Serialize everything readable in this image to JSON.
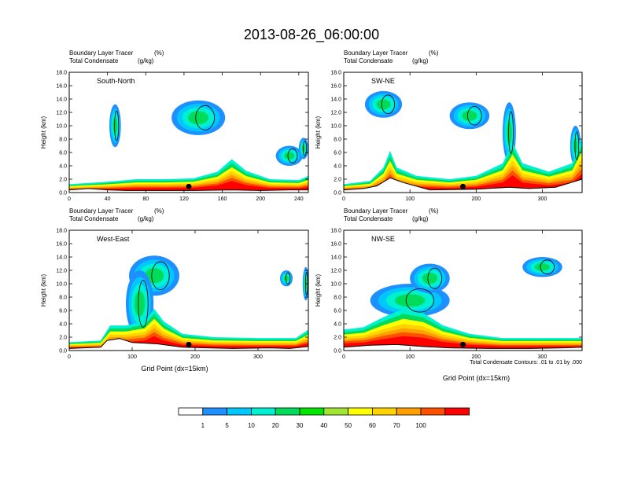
{
  "colors": {
    "scale": [
      "#ffffff",
      "#1e90ff",
      "#00c8ff",
      "#00f0d2",
      "#00dc5a",
      "#00e600",
      "#a0e632",
      "#ffff00",
      "#ffd200",
      "#ffa000",
      "#ff5000",
      "#ff0000"
    ]
  },
  "chart_data": [
    {
      "type": "heatmap",
      "panel": "South-North",
      "title": "2013-08-26_06:00:00",
      "subtitle_left_1": "Boundary Layer Tracer",
      "subtitle_unit_1": "(%)",
      "subtitle_left_2": "Total Condensate",
      "subtitle_unit_2": "(g/kg)",
      "ylabel": "Height (km)",
      "xlabel": "",
      "xlim": [
        0,
        250
      ],
      "ylim": [
        0,
        18
      ],
      "xticks": [
        0,
        40,
        80,
        120,
        160,
        200,
        240
      ],
      "yticks": [
        "0.0",
        "2.0",
        "4.0",
        "6.0",
        "8.0",
        "10.0",
        "12.0",
        "14.0",
        "16.0",
        "18.0"
      ],
      "marker_x": 125,
      "terrain": [
        [
          0,
          0.4
        ],
        [
          20,
          0.6
        ],
        [
          40,
          0.4
        ],
        [
          60,
          0.3
        ],
        [
          90,
          0.3
        ],
        [
          130,
          0.3
        ],
        [
          170,
          0.4
        ],
        [
          200,
          0.3
        ],
        [
          230,
          0.4
        ],
        [
          250,
          0.4
        ]
      ],
      "red_top": [
        [
          0,
          1.0
        ],
        [
          40,
          1.3
        ],
        [
          70,
          1.6
        ],
        [
          100,
          1.6
        ],
        [
          130,
          1.7
        ],
        [
          155,
          2.5
        ],
        [
          170,
          4.0
        ],
        [
          185,
          2.6
        ],
        [
          210,
          1.6
        ],
        [
          240,
          1.5
        ],
        [
          250,
          2.0
        ]
      ],
      "blobs": [
        {
          "x": 135,
          "y": 11.2,
          "rx": 28,
          "ry": 2.6
        },
        {
          "x": 48,
          "y": 10.0,
          "rx": 6,
          "ry": 3.2
        },
        {
          "x": 230,
          "y": 5.5,
          "rx": 14,
          "ry": 1.5
        },
        {
          "x": 245,
          "y": 6.6,
          "rx": 5,
          "ry": 1.6
        }
      ]
    },
    {
      "type": "heatmap",
      "panel": "SW-NE",
      "subtitle_left_1": "Boundary Layer Tracer",
      "subtitle_unit_1": "(%)",
      "subtitle_left_2": "Total Condensate",
      "subtitle_unit_2": "(g/kg)",
      "ylabel": "Height (km)",
      "xlabel": "",
      "xlim": [
        0,
        360
      ],
      "ylim": [
        0,
        18
      ],
      "xticks": [
        0,
        100,
        200,
        300
      ],
      "yticks": [
        "0.0",
        "2.0",
        "4.0",
        "6.0",
        "8.0",
        "10.0",
        "12.0",
        "14.0",
        "16.0",
        "18.0"
      ],
      "marker_x": 180,
      "terrain": [
        [
          0,
          0.4
        ],
        [
          30,
          0.6
        ],
        [
          50,
          1.0
        ],
        [
          70,
          2.2
        ],
        [
          90,
          1.5
        ],
        [
          130,
          0.4
        ],
        [
          200,
          0.5
        ],
        [
          250,
          0.8
        ],
        [
          280,
          0.6
        ],
        [
          320,
          0.8
        ],
        [
          360,
          2.0
        ]
      ],
      "red_top": [
        [
          0,
          1.0
        ],
        [
          40,
          1.4
        ],
        [
          60,
          3.0
        ],
        [
          70,
          5.0
        ],
        [
          80,
          3.0
        ],
        [
          110,
          2.0
        ],
        [
          160,
          1.6
        ],
        [
          200,
          2.0
        ],
        [
          240,
          3.5
        ],
        [
          255,
          6.0
        ],
        [
          270,
          3.5
        ],
        [
          310,
          2.5
        ],
        [
          345,
          3.5
        ],
        [
          360,
          6.5
        ]
      ],
      "blobs": [
        {
          "x": 60,
          "y": 13.2,
          "rx": 28,
          "ry": 2.0
        },
        {
          "x": 190,
          "y": 11.5,
          "rx": 30,
          "ry": 2.0
        },
        {
          "x": 250,
          "y": 9.0,
          "rx": 10,
          "ry": 4.5
        },
        {
          "x": 350,
          "y": 7.0,
          "rx": 8,
          "ry": 3.0
        }
      ]
    },
    {
      "type": "heatmap",
      "panel": "West-East",
      "subtitle_left_1": "Boundary Layer Tracer",
      "subtitle_unit_1": "(%)",
      "subtitle_left_2": "Total Condensate",
      "subtitle_unit_2": "(g/kg)",
      "ylabel": "Height (km)",
      "xlabel": "Grid Point (dx=15km)",
      "xlim": [
        0,
        380
      ],
      "ylim": [
        0,
        18
      ],
      "xticks": [
        0,
        100,
        200,
        300
      ],
      "yticks": [
        "0.0",
        "2.0",
        "4.0",
        "6.0",
        "8.0",
        "10.0",
        "12.0",
        "14.0",
        "16.0",
        "18.0"
      ],
      "marker_x": 190,
      "terrain": [
        [
          0,
          0.3
        ],
        [
          50,
          0.5
        ],
        [
          60,
          1.5
        ],
        [
          80,
          1.8
        ],
        [
          100,
          1.2
        ],
        [
          140,
          1.0
        ],
        [
          180,
          0.5
        ],
        [
          260,
          0.3
        ],
        [
          320,
          0.4
        ],
        [
          350,
          0.3
        ],
        [
          380,
          0.6
        ]
      ],
      "red_top": [
        [
          0,
          1.0
        ],
        [
          50,
          1.2
        ],
        [
          65,
          3.0
        ],
        [
          90,
          3.0
        ],
        [
          120,
          3.5
        ],
        [
          135,
          5.0
        ],
        [
          150,
          3.5
        ],
        [
          180,
          2.0
        ],
        [
          230,
          1.6
        ],
        [
          300,
          1.5
        ],
        [
          360,
          1.5
        ],
        [
          380,
          2.5
        ]
      ],
      "blobs": [
        {
          "x": 135,
          "y": 11.2,
          "rx": 40,
          "ry": 3.0
        },
        {
          "x": 112,
          "y": 7.0,
          "rx": 22,
          "ry": 5.0
        },
        {
          "x": 345,
          "y": 10.8,
          "rx": 10,
          "ry": 1.2
        },
        {
          "x": 376,
          "y": 10.0,
          "rx": 5,
          "ry": 2.5
        }
      ]
    },
    {
      "type": "heatmap",
      "panel": "NW-SE",
      "subtitle_left_1": "Boundary Layer Tracer",
      "subtitle_unit_1": "(%)",
      "subtitle_left_2": "Total Condensate",
      "subtitle_unit_2": "(g/kg)",
      "ylabel": "Height (km)",
      "xlabel": "Grid Point (dx=15km)",
      "contour_note": "Total Condensate Contours: .01 to .01 by .000",
      "xlim": [
        0,
        360
      ],
      "ylim": [
        0,
        18
      ],
      "xticks": [
        0,
        100,
        200,
        300
      ],
      "yticks": [
        "0.0",
        "2.0",
        "4.0",
        "6.0",
        "8.0",
        "10.0",
        "12.0",
        "14.0",
        "16.0",
        "18.0"
      ],
      "marker_x": 180,
      "terrain": [
        [
          0,
          0.5
        ],
        [
          40,
          0.8
        ],
        [
          80,
          0.9
        ],
        [
          120,
          0.6
        ],
        [
          160,
          0.4
        ],
        [
          220,
          0.3
        ],
        [
          280,
          0.3
        ],
        [
          330,
          0.4
        ],
        [
          360,
          0.5
        ]
      ],
      "red_top": [
        [
          0,
          2.5
        ],
        [
          30,
          2.8
        ],
        [
          60,
          4.0
        ],
        [
          90,
          5.0
        ],
        [
          120,
          4.5
        ],
        [
          150,
          3.0
        ],
        [
          190,
          2.0
        ],
        [
          240,
          1.5
        ],
        [
          300,
          1.5
        ],
        [
          360,
          1.5
        ]
      ],
      "blobs": [
        {
          "x": 100,
          "y": 7.5,
          "rx": 60,
          "ry": 2.5
        },
        {
          "x": 130,
          "y": 10.8,
          "rx": 30,
          "ry": 2.2
        },
        {
          "x": 300,
          "y": 12.5,
          "rx": 30,
          "ry": 1.5
        }
      ]
    },
    {
      "type": "legend",
      "colorbar_labels": [
        "1",
        "5",
        "10",
        "20",
        "30",
        "40",
        "50",
        "60",
        "70",
        "100"
      ]
    }
  ]
}
